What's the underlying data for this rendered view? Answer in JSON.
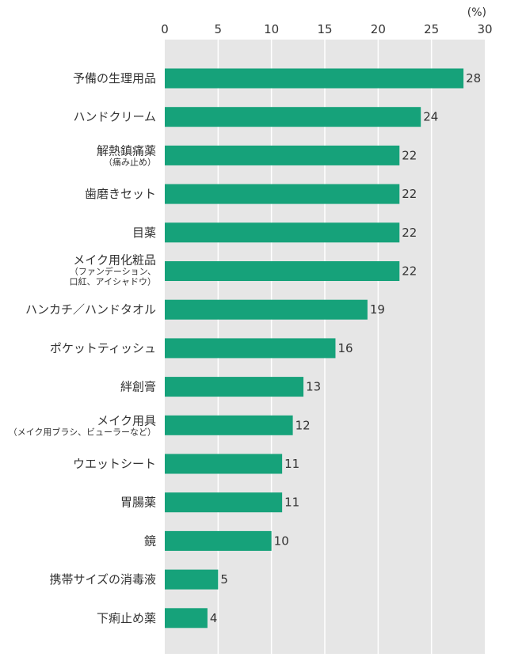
{
  "chart_data": {
    "type": "bar",
    "orientation": "horizontal",
    "unit": "(%)",
    "xlim": [
      0,
      30
    ],
    "ticks": [
      0,
      5,
      10,
      15,
      20,
      25,
      30
    ],
    "grid": true,
    "bar_color": "#16a27a",
    "plot_bg": "#e6e6e6",
    "categories": [
      {
        "label": "予備の生理用品",
        "sub": []
      },
      {
        "label": "ハンドクリーム",
        "sub": []
      },
      {
        "label": "解熱鎮痛薬",
        "sub": [
          "（痛み止め）"
        ]
      },
      {
        "label": "歯磨きセット",
        "sub": []
      },
      {
        "label": "目薬",
        "sub": []
      },
      {
        "label": "メイク用化粧品",
        "sub": [
          "（ファンデーション、",
          "口紅、アイシャドウ）"
        ]
      },
      {
        "label": "ハンカチ／ハンドタオル",
        "sub": []
      },
      {
        "label": "ポケットティッシュ",
        "sub": []
      },
      {
        "label": "絆創膏",
        "sub": []
      },
      {
        "label": "メイク用具",
        "sub": [
          "（メイク用ブラシ、ビューラーなど）"
        ]
      },
      {
        "label": "ウエットシート",
        "sub": []
      },
      {
        "label": "胃腸薬",
        "sub": []
      },
      {
        "label": "鏡",
        "sub": []
      },
      {
        "label": "携帯サイズの消毒液",
        "sub": []
      },
      {
        "label": "下痢止め薬",
        "sub": []
      }
    ],
    "values": [
      28,
      24,
      22,
      22,
      22,
      22,
      19,
      16,
      13,
      12,
      11,
      11,
      10,
      5,
      4
    ]
  }
}
